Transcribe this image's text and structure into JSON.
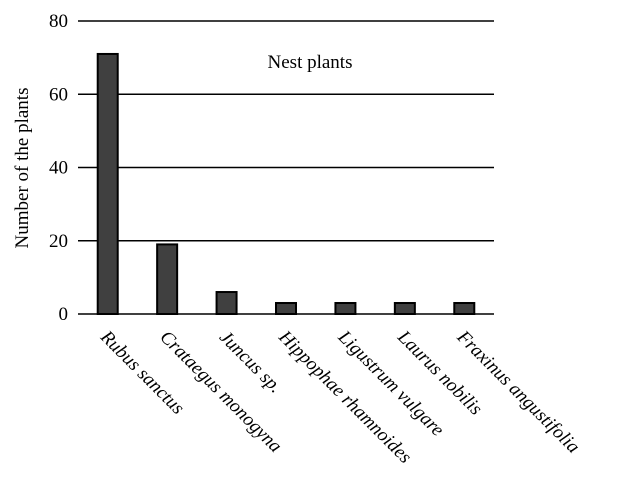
{
  "chart_data": {
    "type": "bar",
    "title": "Nest plants",
    "ylabel": "Number of the plants",
    "categories": [
      "Rubus sanctus",
      "Crataegus monogyna",
      "Juncus sp.",
      "Hippophae rhamnoides",
      "Ligustrum vulgare",
      "Laurus nobilis",
      "Fraxinus angustifolia"
    ],
    "values": [
      71,
      19,
      6,
      3,
      3,
      3,
      3
    ],
    "color": "#404040",
    "ylim": [
      0,
      80
    ],
    "yticks": [
      0,
      20,
      40,
      60,
      80
    ],
    "grid": true
  }
}
